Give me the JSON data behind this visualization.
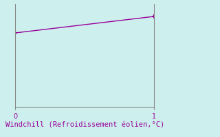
{
  "x_values": [
    0,
    1
  ],
  "y_values": [
    0.72,
    0.88
  ],
  "line_color": "#990099",
  "marker_color": "#990099",
  "background_color": "#cdf0ee",
  "axis_color": "#888888",
  "xlabel": "Windchill (Refroidissement éolien,°C)",
  "xlabel_color": "#990099",
  "xlabel_fontsize": 7.5,
  "xlim": [
    0,
    1
  ],
  "ylim": [
    0.0,
    1.0
  ],
  "x_ticks": [
    0,
    1
  ],
  "y_ticks": [],
  "tick_label_color": "#990099",
  "tick_fontsize": 7,
  "line_width": 1.0,
  "marker_size": 5,
  "figsize": [
    3.2,
    2.0
  ],
  "dpi": 100
}
